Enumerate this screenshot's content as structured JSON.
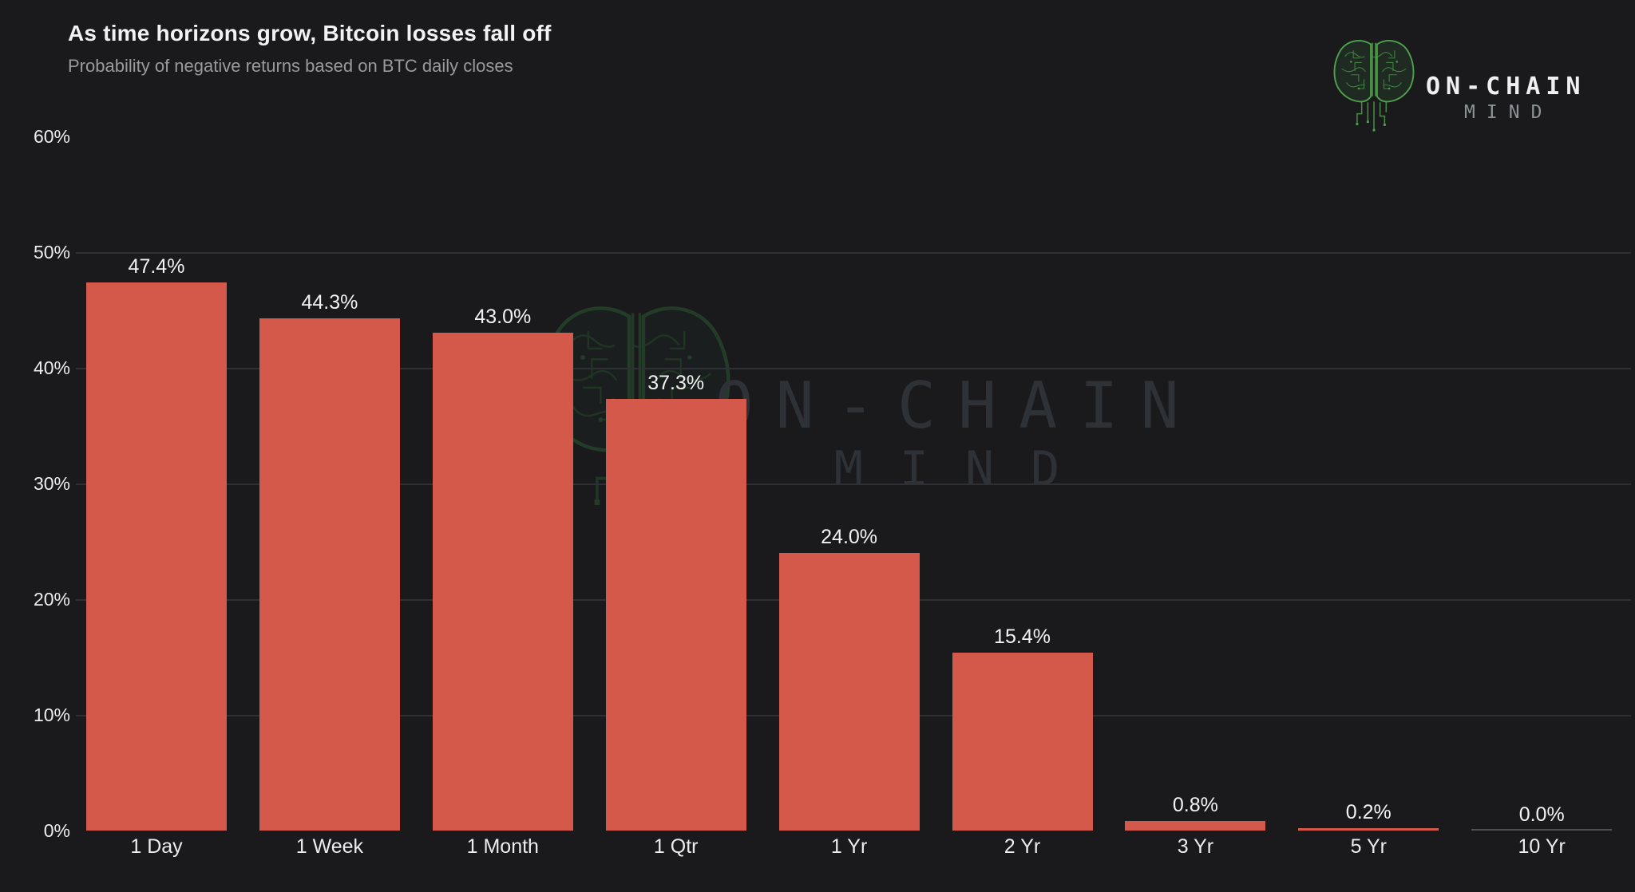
{
  "chart_data": {
    "type": "bar",
    "title": "As time horizons grow, Bitcoin losses fall off",
    "subtitle": "Probability of negative returns based on BTC daily closes",
    "categories": [
      "1 Day",
      "1 Week",
      "1 Month",
      "1 Qtr",
      "1 Yr",
      "2 Yr",
      "3 Yr",
      "5 Yr",
      "10 Yr"
    ],
    "values": [
      47.4,
      44.3,
      43.0,
      37.3,
      24.0,
      15.4,
      0.8,
      0.2,
      0.0
    ],
    "value_labels": [
      "47.4%",
      "44.3%",
      "43.0%",
      "37.3%",
      "24.0%",
      "15.4%",
      "0.8%",
      "0.2%",
      "0.0%"
    ],
    "xlabel": "",
    "ylabel": "",
    "ylim": [
      0,
      60
    ],
    "ytick_values": [
      0,
      10,
      20,
      30,
      40,
      50,
      60
    ],
    "ytick_labels": [
      "0%",
      "10%",
      "20%",
      "30%",
      "40%",
      "50%",
      "60%"
    ],
    "grid": true,
    "legend": null,
    "bar_color": "#d5594b"
  },
  "branding": {
    "line1": "ON-CHAIN",
    "line2": "MIND",
    "icon": "circuit-brain-icon"
  },
  "watermark": {
    "line1": "ON-CHAIN",
    "line2": "MIND",
    "icon": "circuit-brain-icon"
  },
  "colors": {
    "background": "#1a1a1d",
    "bar": "#d5594b",
    "grid": "#2e3035",
    "zero_bar": "#4d4f53",
    "title": "#f2f2f2",
    "subtitle": "#9a9a9c",
    "axis_label": "#ececec",
    "watermark_text": "#2e3136",
    "logo_primary": "#f0f0f0",
    "logo_secondary": "#8d9297",
    "brain_green": "#4ea24c",
    "brain_watermark": "#2b5e31"
  }
}
